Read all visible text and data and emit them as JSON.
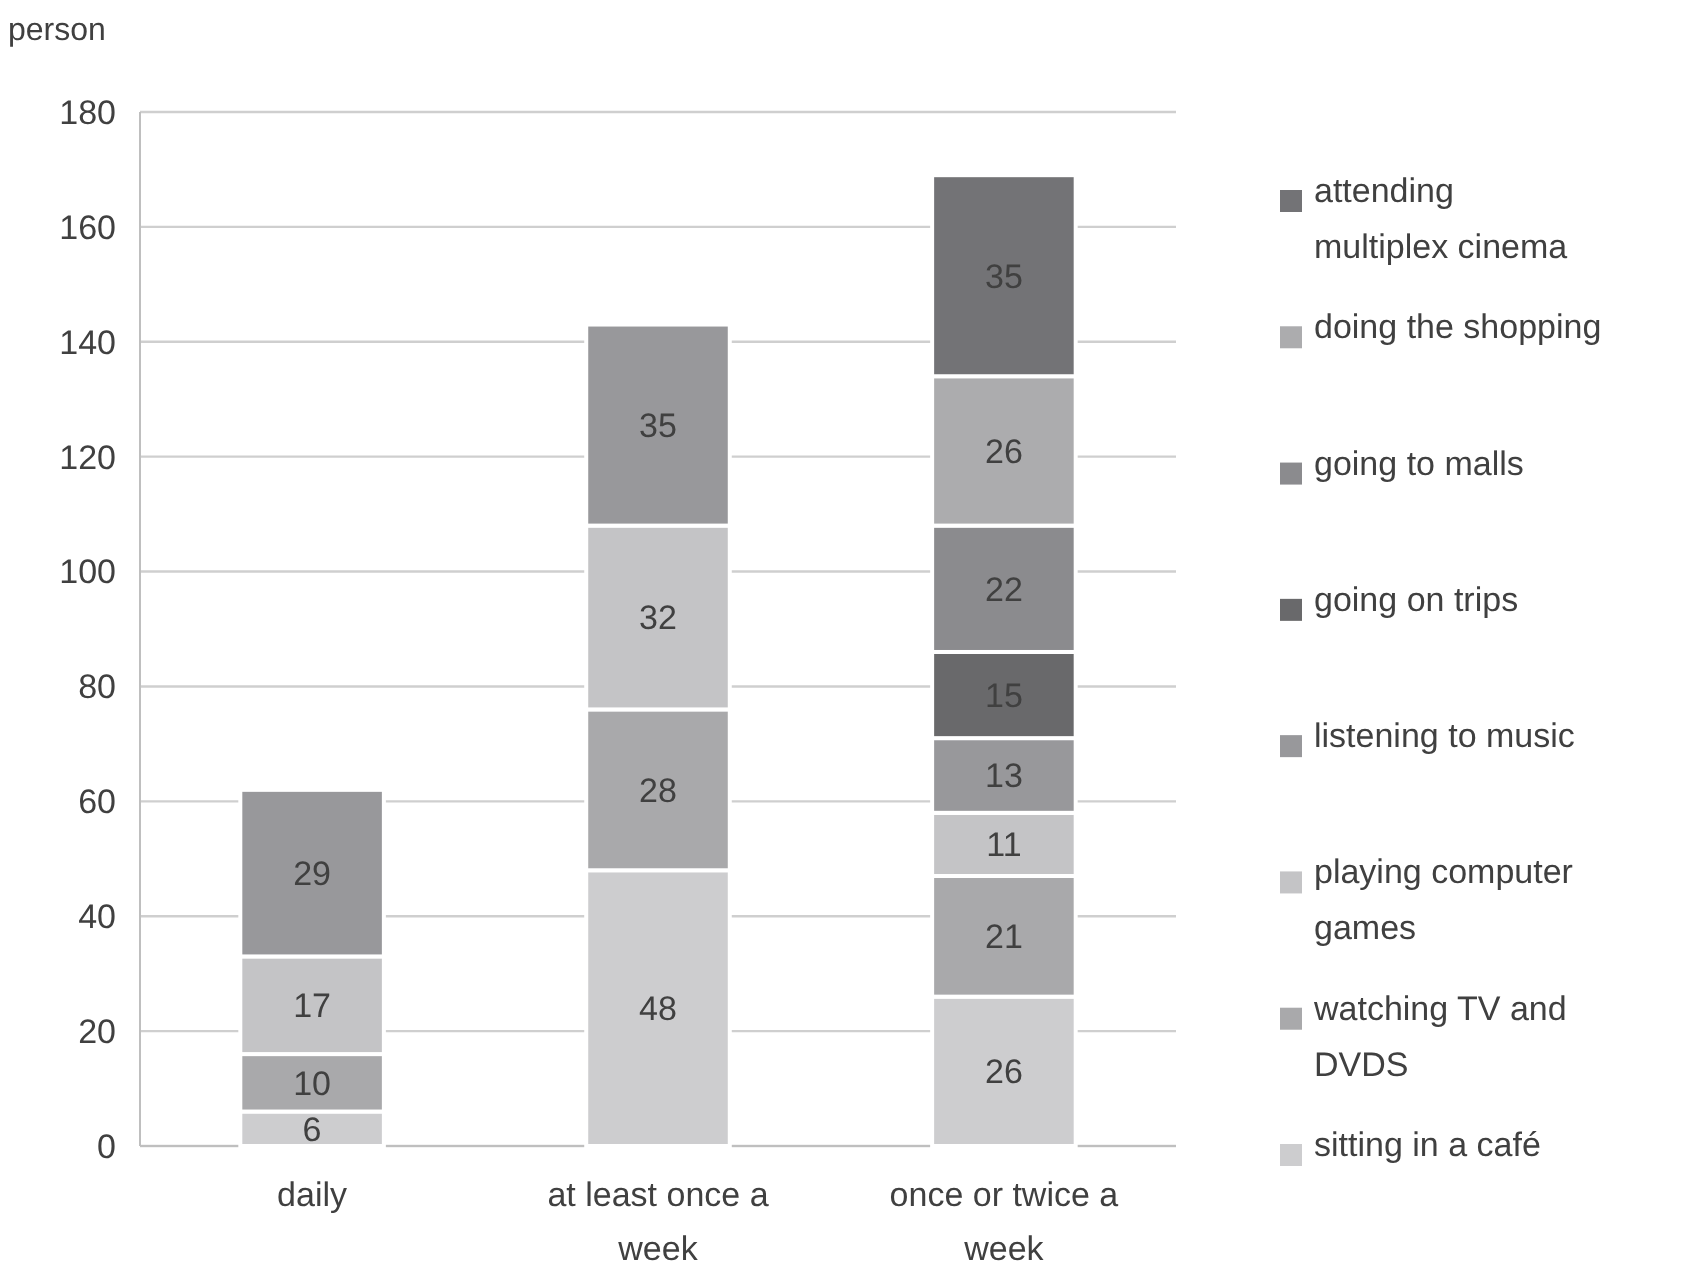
{
  "chart_data": {
    "type": "bar",
    "stacked": true,
    "ylabel": "person",
    "categories": [
      "daily",
      "at least once a week",
      "once or twice a week"
    ],
    "ylim": [
      0,
      180
    ],
    "yticks": [
      0,
      20,
      40,
      60,
      80,
      100,
      120,
      140,
      160,
      180
    ],
    "grid": "y",
    "legend": "right",
    "data_labels": true,
    "series": [
      {
        "name": "sitting in a café",
        "color": "#cdcdcf",
        "values": [
          6,
          48,
          26
        ]
      },
      {
        "name": "watching TV and DVDS",
        "color": "#a9a9ab",
        "values": [
          10,
          28,
          21
        ]
      },
      {
        "name": "playing computer games",
        "color": "#c4c4c6",
        "values": [
          17,
          32,
          11
        ]
      },
      {
        "name": "listening to music",
        "color": "#98989b",
        "values": [
          29,
          35,
          13
        ]
      },
      {
        "name": "going on trips",
        "color": "#69696b",
        "values": [
          null,
          null,
          15
        ]
      },
      {
        "name": "going to malls",
        "color": "#8b8b8e",
        "values": [
          null,
          null,
          22
        ]
      },
      {
        "name": "doing the shopping",
        "color": "#acacae",
        "values": [
          null,
          null,
          26
        ]
      },
      {
        "name": "attending multiplex cinema",
        "color": "#737376",
        "values": [
          null,
          null,
          35
        ]
      }
    ]
  }
}
